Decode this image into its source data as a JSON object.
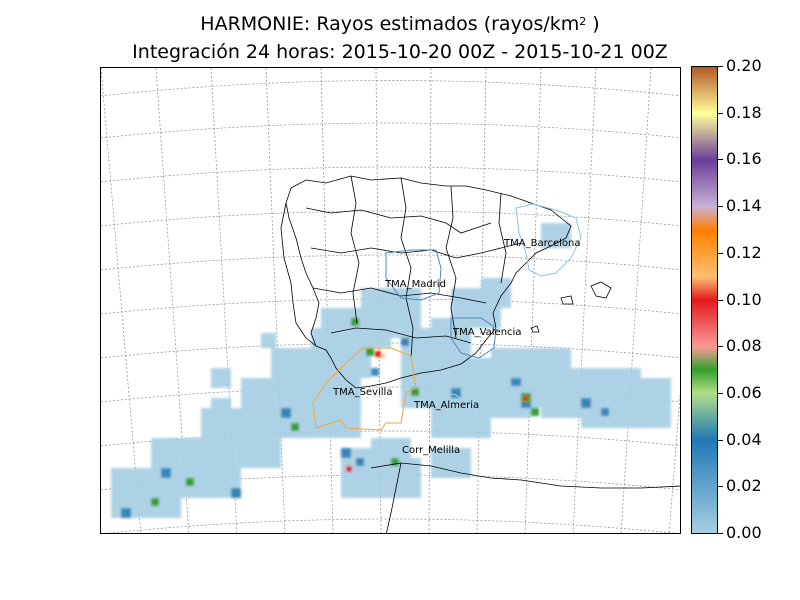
{
  "title": {
    "line1_prefix": "HARMONIE: Rayos estimados (rayos/km",
    "line1_sup": "2",
    "line1_suffix": " )",
    "line2": "Integración 24 horas: 2015-10-20 00Z - 2015-10-21 00Z"
  },
  "colorbar": {
    "ticks": [
      "0.00",
      "0.02",
      "0.04",
      "0.06",
      "0.08",
      "0.10",
      "0.12",
      "0.14",
      "0.16",
      "0.18",
      "0.20"
    ],
    "colors": [
      "#a6cee3",
      "#1f78b4",
      "#b2df8a",
      "#33a02c",
      "#fb9a99",
      "#e31a1c",
      "#fdbf6f",
      "#ff7f00",
      "#cab2d6",
      "#6a3d9a",
      "#ffff99",
      "#b15928"
    ]
  },
  "regions": {
    "barcelona": "TMA_Barcelona",
    "madrid": "TMA_Madrid",
    "valencia": "TMA_Valencia",
    "sevilla": "TMA_Sevilla",
    "almeria": "TMA_Almeria",
    "melilla": "Corr_Melilla"
  },
  "colors": {
    "sevilla_outline": "#f4a442",
    "madrid_outline": "#4a8bc2",
    "barcelona_outline": "#8ec3e0",
    "valencia_outline": "#4a8bc2"
  }
}
